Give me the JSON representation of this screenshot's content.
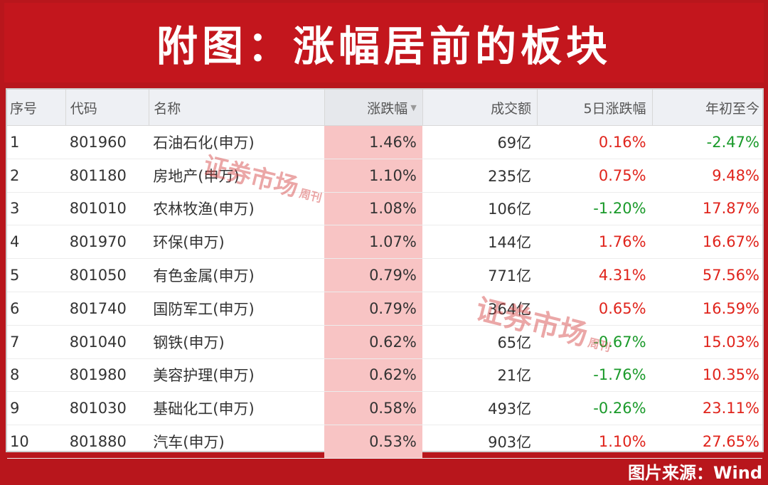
{
  "title": "附图：涨幅居前的板块",
  "columns": [
    "序号",
    "代码",
    "名称",
    "涨跌幅",
    "成交额",
    "5日涨跌幅",
    "年初至今"
  ],
  "sort_indicator": "▼",
  "rows": [
    {
      "seq": "1",
      "code": "801960",
      "name": "石油石化(申万)",
      "change": "1.46%",
      "amount": "69亿",
      "d5": "0.16%",
      "ytd": "-2.47%"
    },
    {
      "seq": "2",
      "code": "801180",
      "name": "房地产(申万)",
      "change": "1.10%",
      "amount": "235亿",
      "d5": "0.75%",
      "ytd": "9.48%"
    },
    {
      "seq": "3",
      "code": "801010",
      "name": "农林牧渔(申万)",
      "change": "1.08%",
      "amount": "106亿",
      "d5": "-1.20%",
      "ytd": "17.87%"
    },
    {
      "seq": "4",
      "code": "801970",
      "name": "环保(申万)",
      "change": "1.07%",
      "amount": "144亿",
      "d5": "1.76%",
      "ytd": "16.67%"
    },
    {
      "seq": "5",
      "code": "801050",
      "name": "有色金属(申万)",
      "change": "0.79%",
      "amount": "771亿",
      "d5": "4.31%",
      "ytd": "57.56%"
    },
    {
      "seq": "6",
      "code": "801740",
      "name": "国防军工(申万)",
      "change": "0.79%",
      "amount": "364亿",
      "d5": "0.65%",
      "ytd": "16.59%"
    },
    {
      "seq": "7",
      "code": "801040",
      "name": "钢铁(申万)",
      "change": "0.62%",
      "amount": "65亿",
      "d5": "-0.67%",
      "ytd": "15.03%"
    },
    {
      "seq": "8",
      "code": "801980",
      "name": "美容护理(申万)",
      "change": "0.62%",
      "amount": "21亿",
      "d5": "-1.76%",
      "ytd": "10.35%"
    },
    {
      "seq": "9",
      "code": "801030",
      "name": "基础化工(申万)",
      "change": "0.58%",
      "amount": "493亿",
      "d5": "-0.26%",
      "ytd": "23.11%"
    },
    {
      "seq": "10",
      "code": "801880",
      "name": "汽车(申万)",
      "change": "0.53%",
      "amount": "903亿",
      "d5": "1.10%",
      "ytd": "27.65%"
    }
  ],
  "watermark": {
    "main": "证券市场",
    "side": "周刊"
  },
  "source": "图片来源：Wind",
  "colors": {
    "frame": "#b8161c",
    "highlight": "#f8c4c4",
    "positive": "#e0241c",
    "negative": "#1a9a2a"
  }
}
